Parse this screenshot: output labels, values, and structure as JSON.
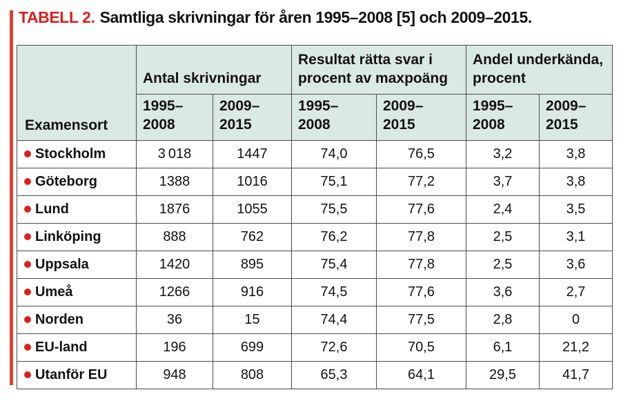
{
  "colors": {
    "accent_red": "#dc1f1f",
    "bar_red": "#d94036",
    "header_bg": "#dbe9e6",
    "border": "#494949",
    "text": "#121212",
    "bg": "#ffffff"
  },
  "title": {
    "tag": "TABELL 2.",
    "text": "Samtliga skrivningar för åren 1995–2008 [5] och 2009–2015."
  },
  "table": {
    "corner_header": "Examensort",
    "groups": [
      {
        "label": "Antal skrivningar",
        "periods": [
          "1995–\n2008",
          "2009–\n2015"
        ]
      },
      {
        "label": "Resultat rätta svar i\nprocent av maxpoäng",
        "periods": [
          "1995–\n2008",
          "2009–\n2015"
        ]
      },
      {
        "label": "Andel underkända,\nprocent",
        "periods": [
          "1995–\n2008",
          "2009–\n2015"
        ]
      }
    ],
    "rows": [
      {
        "name": "Stockholm",
        "values": [
          "3 018",
          "1447",
          "74,0",
          "76,5",
          "3,2",
          "3,8"
        ]
      },
      {
        "name": "Göteborg",
        "values": [
          "1388",
          "1016",
          "75,1",
          "77,2",
          "3,7",
          "3,8"
        ]
      },
      {
        "name": "Lund",
        "values": [
          "1876",
          "1055",
          "75,5",
          "77,6",
          "2,4",
          "3,5"
        ]
      },
      {
        "name": "Linköping",
        "values": [
          "888",
          "762",
          "76,2",
          "77,8",
          "2,5",
          "3,1"
        ]
      },
      {
        "name": "Uppsala",
        "values": [
          "1420",
          "895",
          "75,4",
          "77,8",
          "2,5",
          "3,6"
        ]
      },
      {
        "name": "Umeå",
        "values": [
          "1266",
          "916",
          "74,5",
          "77,6",
          "3,6",
          "2,7"
        ]
      },
      {
        "name": "Norden",
        "values": [
          "36",
          "15",
          "74,4",
          "77,5",
          "2,8",
          "0"
        ]
      },
      {
        "name": "EU-land",
        "values": [
          "196",
          "699",
          "72,6",
          "70,5",
          "6,1",
          "21,2"
        ]
      },
      {
        "name": "Utanför EU",
        "values": [
          "948",
          "808",
          "65,3",
          "64,1",
          "29,5",
          "41,7"
        ]
      }
    ]
  },
  "chart_data": {
    "type": "table",
    "title": "TABELL 2. Samtliga skrivningar för åren 1995–2008 [5] och 2009–2015.",
    "row_header_label": "Examensort",
    "column_groups": [
      "Antal skrivningar",
      "Resultat rätta svar i procent av maxpoäng",
      "Andel underkända, procent"
    ],
    "periods": [
      "1995–2008",
      "2009–2015"
    ],
    "rows": [
      {
        "examensort": "Stockholm",
        "antal_skrivningar": [
          3018,
          1447
        ],
        "resultat_procent": [
          74.0,
          76.5
        ],
        "andel_underkanda_procent": [
          3.2,
          3.8
        ]
      },
      {
        "examensort": "Göteborg",
        "antal_skrivningar": [
          1388,
          1016
        ],
        "resultat_procent": [
          75.1,
          77.2
        ],
        "andel_underkanda_procent": [
          3.7,
          3.8
        ]
      },
      {
        "examensort": "Lund",
        "antal_skrivningar": [
          1876,
          1055
        ],
        "resultat_procent": [
          75.5,
          77.6
        ],
        "andel_underkanda_procent": [
          2.4,
          3.5
        ]
      },
      {
        "examensort": "Linköping",
        "antal_skrivningar": [
          888,
          762
        ],
        "resultat_procent": [
          76.2,
          77.8
        ],
        "andel_underkanda_procent": [
          2.5,
          3.1
        ]
      },
      {
        "examensort": "Uppsala",
        "antal_skrivningar": [
          1420,
          895
        ],
        "resultat_procent": [
          75.4,
          77.8
        ],
        "andel_underkanda_procent": [
          2.5,
          3.6
        ]
      },
      {
        "examensort": "Umeå",
        "antal_skrivningar": [
          1266,
          916
        ],
        "resultat_procent": [
          74.5,
          77.6
        ],
        "andel_underkanda_procent": [
          3.6,
          2.7
        ]
      },
      {
        "examensort": "Norden",
        "antal_skrivningar": [
          36,
          15
        ],
        "resultat_procent": [
          74.4,
          77.5
        ],
        "andel_underkanda_procent": [
          2.8,
          0
        ]
      },
      {
        "examensort": "EU-land",
        "antal_skrivningar": [
          196,
          699
        ],
        "resultat_procent": [
          72.6,
          70.5
        ],
        "andel_underkanda_procent": [
          6.1,
          21.2
        ]
      },
      {
        "examensort": "Utanför EU",
        "antal_skrivningar": [
          948,
          808
        ],
        "resultat_procent": [
          65.3,
          64.1
        ],
        "andel_underkanda_procent": [
          29.5,
          41.7
        ]
      }
    ]
  }
}
